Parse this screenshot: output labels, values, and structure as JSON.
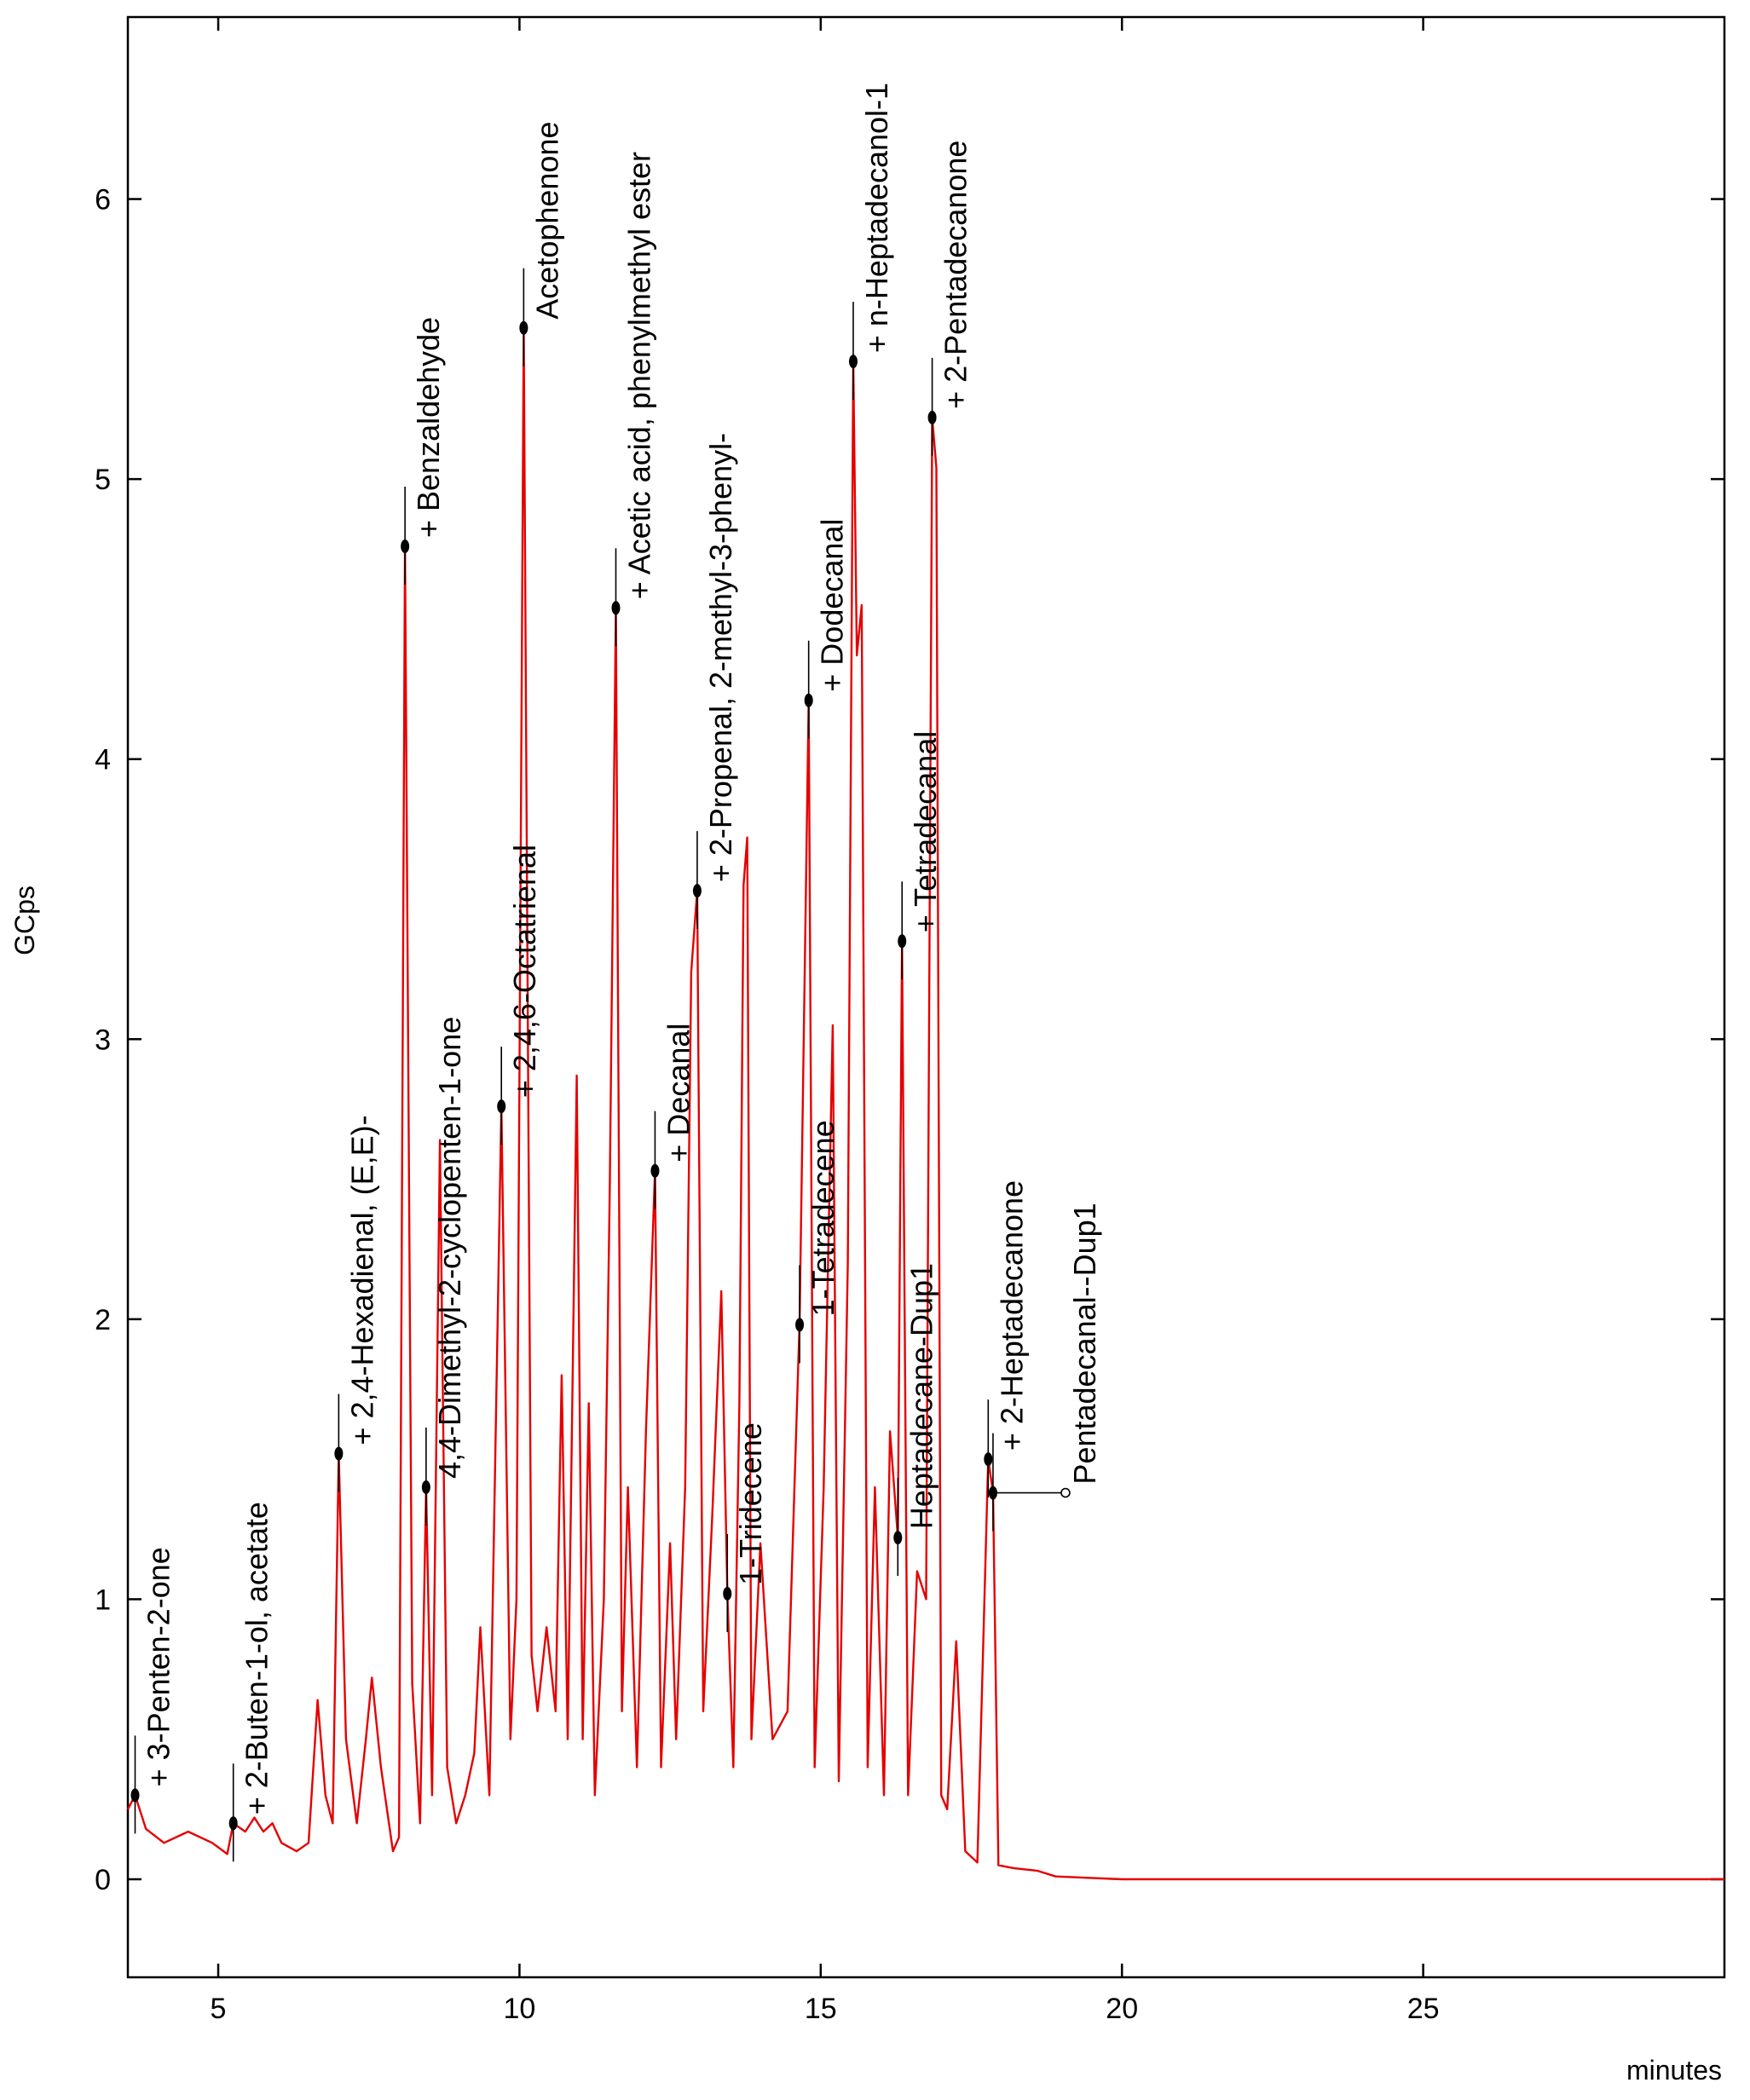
{
  "chart_data": {
    "type": "line",
    "xlabel": "minutes",
    "ylabel": "GCps",
    "xlim": [
      3.5,
      30.0
    ],
    "ylim": [
      -0.35,
      6.65
    ],
    "x_ticks": [
      5,
      10,
      15,
      20,
      25
    ],
    "y_ticks": [
      0,
      1,
      2,
      3,
      4,
      5,
      6
    ],
    "grid": false,
    "color": "#e50000",
    "series": [
      {
        "points": [
          [
            3.5,
            0.25
          ],
          [
            3.62,
            0.3
          ],
          [
            3.8,
            0.18
          ],
          [
            4.1,
            0.13
          ],
          [
            4.5,
            0.17
          ],
          [
            4.9,
            0.13
          ],
          [
            5.15,
            0.09
          ],
          [
            5.25,
            0.2
          ],
          [
            5.45,
            0.17
          ],
          [
            5.6,
            0.22
          ],
          [
            5.75,
            0.17
          ],
          [
            5.9,
            0.2
          ],
          [
            6.05,
            0.13
          ],
          [
            6.3,
            0.1
          ],
          [
            6.5,
            0.13
          ],
          [
            6.65,
            0.64
          ],
          [
            6.78,
            0.3
          ],
          [
            6.9,
            0.2
          ],
          [
            7.0,
            1.52
          ],
          [
            7.12,
            0.5
          ],
          [
            7.3,
            0.2
          ],
          [
            7.45,
            0.5
          ],
          [
            7.55,
            0.72
          ],
          [
            7.7,
            0.4
          ],
          [
            7.9,
            0.1
          ],
          [
            8.0,
            0.15
          ],
          [
            8.1,
            4.76
          ],
          [
            8.22,
            0.7
          ],
          [
            8.35,
            0.2
          ],
          [
            8.45,
            1.4
          ],
          [
            8.55,
            0.3
          ],
          [
            8.68,
            2.64
          ],
          [
            8.8,
            0.4
          ],
          [
            8.95,
            0.2
          ],
          [
            9.1,
            0.3
          ],
          [
            9.25,
            0.45
          ],
          [
            9.35,
            0.9
          ],
          [
            9.5,
            0.3
          ],
          [
            9.7,
            2.76
          ],
          [
            9.85,
            0.5
          ],
          [
            9.95,
            1.0
          ],
          [
            10.07,
            5.54
          ],
          [
            10.2,
            0.8
          ],
          [
            10.3,
            0.6
          ],
          [
            10.45,
            0.9
          ],
          [
            10.6,
            0.6
          ],
          [
            10.7,
            1.8
          ],
          [
            10.8,
            0.5
          ],
          [
            10.95,
            2.87
          ],
          [
            11.05,
            0.5
          ],
          [
            11.15,
            1.7
          ],
          [
            11.25,
            0.3
          ],
          [
            11.4,
            1.0
          ],
          [
            11.5,
            2.48
          ],
          [
            11.6,
            4.54
          ],
          [
            11.7,
            0.6
          ],
          [
            11.8,
            1.4
          ],
          [
            11.95,
            0.4
          ],
          [
            12.1,
            1.6
          ],
          [
            12.25,
            2.53
          ],
          [
            12.35,
            0.4
          ],
          [
            12.5,
            1.2
          ],
          [
            12.6,
            0.5
          ],
          [
            12.75,
            1.4
          ],
          [
            12.85,
            3.24
          ],
          [
            12.95,
            3.53
          ],
          [
            13.05,
            0.6
          ],
          [
            13.2,
            1.3
          ],
          [
            13.35,
            2.1
          ],
          [
            13.45,
            1.02
          ],
          [
            13.55,
            0.4
          ],
          [
            13.65,
            1.7
          ],
          [
            13.72,
            3.55
          ],
          [
            13.78,
            3.72
          ],
          [
            13.85,
            0.5
          ],
          [
            14.0,
            1.2
          ],
          [
            14.2,
            0.5
          ],
          [
            14.45,
            0.6
          ],
          [
            14.65,
            2.0
          ],
          [
            14.8,
            4.21
          ],
          [
            14.9,
            0.4
          ],
          [
            15.05,
            1.4
          ],
          [
            15.2,
            3.05
          ],
          [
            15.3,
            0.35
          ],
          [
            15.45,
            2.2
          ],
          [
            15.54,
            5.42
          ],
          [
            15.6,
            4.37
          ],
          [
            15.68,
            4.55
          ],
          [
            15.78,
            0.4
          ],
          [
            15.9,
            1.4
          ],
          [
            16.05,
            0.3
          ],
          [
            16.15,
            1.6
          ],
          [
            16.28,
            1.22
          ],
          [
            16.35,
            3.35
          ],
          [
            16.45,
            0.3
          ],
          [
            16.6,
            1.1
          ],
          [
            16.75,
            1.0
          ],
          [
            16.85,
            5.22
          ],
          [
            16.92,
            5.04
          ],
          [
            17.0,
            0.3
          ],
          [
            17.1,
            0.25
          ],
          [
            17.25,
            0.85
          ],
          [
            17.4,
            0.1
          ],
          [
            17.6,
            0.06
          ],
          [
            17.78,
            1.5
          ],
          [
            17.86,
            1.38
          ],
          [
            17.95,
            0.05
          ],
          [
            18.2,
            0.04
          ],
          [
            18.6,
            0.03
          ],
          [
            18.9,
            0.01
          ],
          [
            20.0,
            0.0
          ],
          [
            30.0,
            0.0
          ]
        ]
      }
    ],
    "peaks": [
      {
        "x": 3.62,
        "y": 0.3,
        "label": "+ 3-Penten-2-one"
      },
      {
        "x": 5.25,
        "y": 0.2,
        "label": "+ 2-Buten-1-ol, acetate"
      },
      {
        "x": 7.0,
        "y": 1.52,
        "label": "+ 2,4-Hexadienal, (E,E)-"
      },
      {
        "x": 8.1,
        "y": 4.76,
        "label": "+ Benzaldehyde"
      },
      {
        "x": 8.45,
        "y": 1.4,
        "label": "4,4-Dimethyl-2-cyclopenten-1-one"
      },
      {
        "x": 9.7,
        "y": 2.76,
        "label": "+ 2,4,6-Octatrienal"
      },
      {
        "x": 10.07,
        "y": 5.54,
        "label": "Acetophenone"
      },
      {
        "x": 11.6,
        "y": 4.54,
        "label": "+ Acetic acid, phenylmethyl ester"
      },
      {
        "x": 12.25,
        "y": 2.53,
        "label": "+ Decanal"
      },
      {
        "x": 12.95,
        "y": 3.53,
        "label": "+ 2-Propenal, 2-methyl-3-phenyl-"
      },
      {
        "x": 13.45,
        "y": 1.02,
        "label": "1-Tridecene"
      },
      {
        "x": 14.65,
        "y": 1.98,
        "label": "1-Tetradecene"
      },
      {
        "x": 14.8,
        "y": 4.21,
        "label": "+ Dodecanal"
      },
      {
        "x": 15.54,
        "y": 5.42,
        "label": "+ n-Heptadecanol-1"
      },
      {
        "x": 16.28,
        "y": 1.22,
        "label": "Heptadecane-Dup1"
      },
      {
        "x": 16.35,
        "y": 3.35,
        "label": "+ Tetradecanal"
      },
      {
        "x": 16.85,
        "y": 5.22,
        "label": "+ 2-Pentadecanone"
      },
      {
        "x": 17.78,
        "y": 1.5,
        "label": "+ 2-Heptadecanone"
      },
      {
        "x": 17.86,
        "y": 1.38,
        "label": "Pentadecanal--Dup1"
      }
    ]
  }
}
